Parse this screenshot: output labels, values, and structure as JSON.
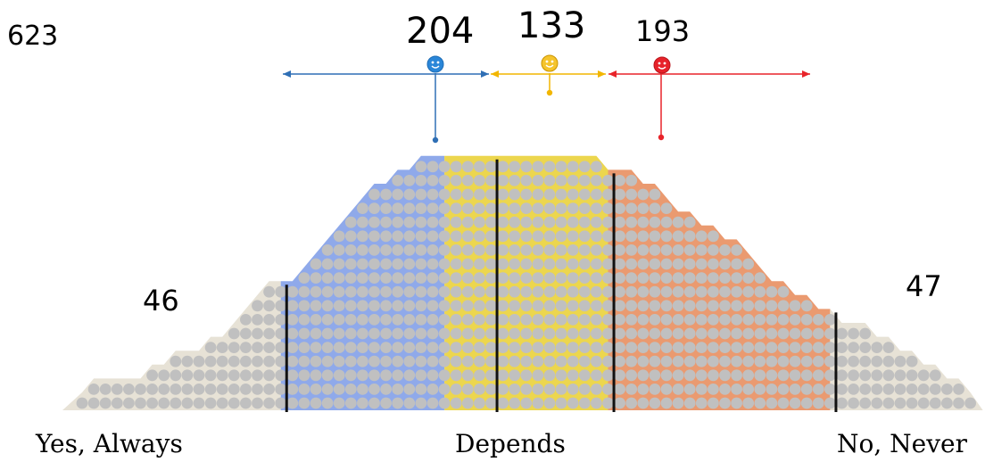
{
  "chart_data": {
    "type": "area",
    "title": "",
    "total_label": "623",
    "xlabel": "",
    "ylabel": "",
    "x_labels": [
      "Yes, Always",
      "Depends",
      "No, Never"
    ],
    "segments": [
      {
        "name": "Yes, Always",
        "value": 46,
        "label": "46",
        "color": "#e7e2d6",
        "icon": "none"
      },
      {
        "name": "Blue",
        "value": 204,
        "label": "204",
        "color": "#8fa9ea",
        "icon": "blue-smiley-icon"
      },
      {
        "name": "Yellow",
        "value": 133,
        "label": "133",
        "color": "#ecd64e",
        "icon": "yellow-smiley-icon"
      },
      {
        "name": "Red",
        "value": 193,
        "label": "193",
        "color": "#ea9a70",
        "icon": "red-smiley-icon"
      },
      {
        "name": "No, Never",
        "value": 47,
        "label": "47",
        "color": "#e7e2d6",
        "icon": "none"
      }
    ],
    "dot_columns": [
      1,
      2,
      2,
      2,
      2,
      2,
      3,
      3,
      4,
      4,
      4,
      5,
      5,
      6,
      7,
      8,
      9,
      9,
      9,
      10,
      11,
      12,
      13,
      14,
      15,
      16,
      16,
      17,
      17,
      18,
      18,
      18,
      18,
      18,
      18,
      18,
      18,
      18,
      18,
      18,
      18,
      18,
      18,
      18,
      18,
      17,
      17,
      17,
      16,
      16,
      15,
      14,
      14,
      13,
      13,
      12,
      12,
      11,
      10,
      9,
      9,
      8,
      8,
      7,
      7,
      6,
      6,
      6,
      5,
      5,
      4,
      4,
      3,
      3,
      2,
      2,
      1
    ],
    "colors": {
      "dot": "#c0c0c0",
      "blue_arrow": "#2f6fb5",
      "yellow_arrow": "#f2b600",
      "red_arrow": "#e8242a",
      "divider": "#111111"
    }
  }
}
